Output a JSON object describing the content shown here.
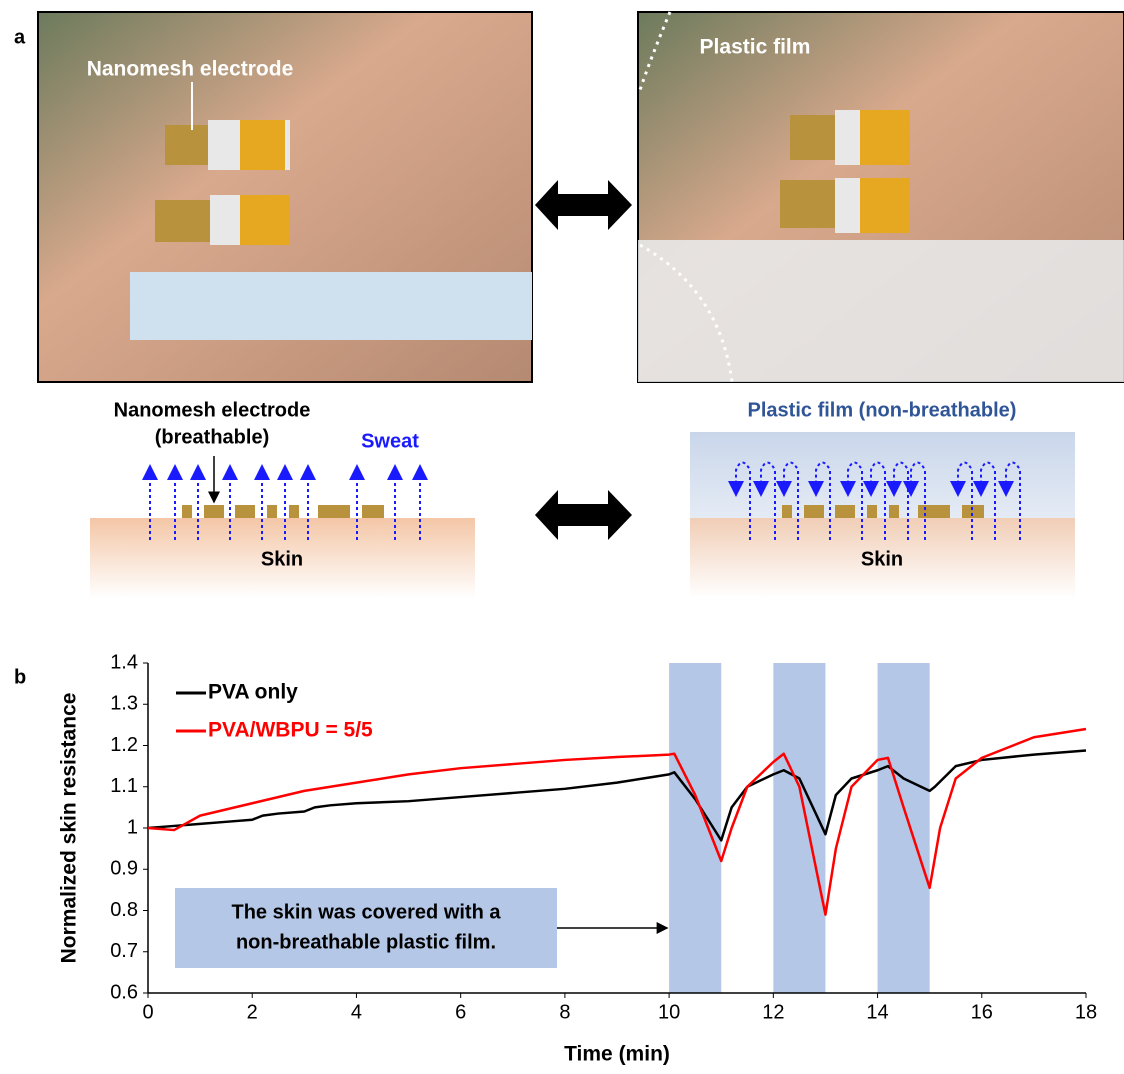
{
  "panel_labels": [
    "a",
    "b"
  ],
  "photos": {
    "left_label": "Nanomesh electrode",
    "right_label": "Plastic film"
  },
  "diagram": {
    "left_title": [
      "Nanomesh electrode",
      "(breathable)"
    ],
    "sweat": "Sweat",
    "left_skin": "Skin",
    "right_title": "Plastic film (non-breathable)",
    "right_skin": "Skin"
  },
  "chart_data": {
    "type": "line",
    "x_label": "Time (min)",
    "y_label": "Normalized skin resistance",
    "xlim": [
      0,
      18
    ],
    "xticks": [
      0,
      2,
      4,
      6,
      8,
      10,
      12,
      14,
      16,
      18
    ],
    "ylim": [
      0.6,
      1.4
    ],
    "yticks": [
      0.6,
      0.7,
      0.8,
      0.9,
      1,
      1.1,
      1.2,
      1.3,
      1.4
    ],
    "legend": "upper left",
    "shaded_ranges": [
      [
        10,
        11
      ],
      [
        12,
        13
      ],
      [
        14,
        15
      ]
    ],
    "shade_color": "#b4c7e7",
    "annotation": [
      "The skin was covered with a",
      "non-breathable plastic film."
    ],
    "series": [
      {
        "name": "PVA only",
        "color": "#000000",
        "x": [
          0,
          0.5,
          1,
          1.5,
          2,
          2.2,
          2.5,
          3,
          3.2,
          3.5,
          4,
          5,
          6,
          7,
          8,
          9,
          9.5,
          10,
          10.1,
          10.5,
          11,
          11.2,
          11.5,
          12,
          12.2,
          12.5,
          13,
          13.2,
          13.5,
          14,
          14.2,
          14.5,
          15,
          15.1,
          15.5,
          16,
          17,
          18
        ],
        "values": [
          1.0,
          1.005,
          1.01,
          1.015,
          1.02,
          1.03,
          1.035,
          1.04,
          1.05,
          1.055,
          1.06,
          1.065,
          1.075,
          1.085,
          1.095,
          1.11,
          1.12,
          1.13,
          1.135,
          1.07,
          0.97,
          1.05,
          1.1,
          1.13,
          1.14,
          1.12,
          0.985,
          1.08,
          1.12,
          1.14,
          1.15,
          1.12,
          1.09,
          1.1,
          1.15,
          1.165,
          1.178,
          1.188
        ]
      },
      {
        "name": "PVA/WBPU = 5/5",
        "color": "#ff0000",
        "x": [
          0,
          0.5,
          1,
          2,
          3,
          4,
          5,
          6,
          7,
          8,
          9,
          10,
          10.1,
          10.5,
          11,
          11.2,
          11.5,
          12,
          12.2,
          12.5,
          13,
          13.2,
          13.5,
          14,
          14.2,
          14.5,
          15,
          15.2,
          15.5,
          16,
          17,
          18
        ],
        "values": [
          1.0,
          0.995,
          1.03,
          1.06,
          1.09,
          1.11,
          1.13,
          1.145,
          1.155,
          1.165,
          1.172,
          1.178,
          1.18,
          1.08,
          0.92,
          1.0,
          1.1,
          1.16,
          1.18,
          1.1,
          0.79,
          0.95,
          1.1,
          1.165,
          1.17,
          1.05,
          0.855,
          1.0,
          1.12,
          1.17,
          1.22,
          1.24
        ]
      }
    ]
  }
}
